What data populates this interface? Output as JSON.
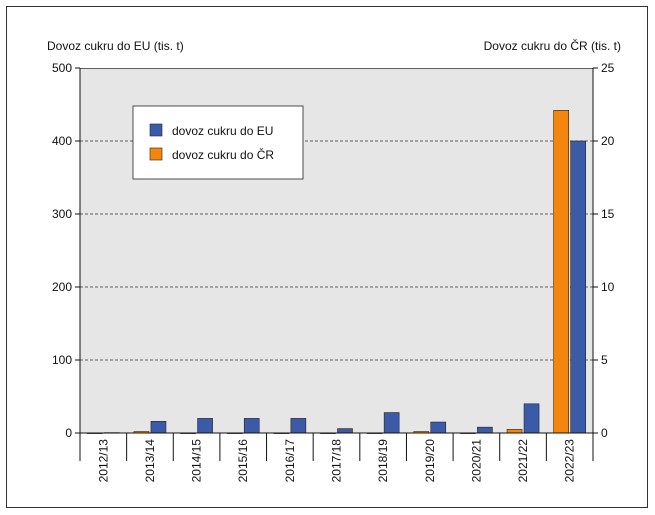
{
  "chart_data": {
    "type": "bar",
    "left_axis_label": "Dovoz cukru do EU (tis. t)",
    "right_axis_label": "Dovoz cukru do ČR (tis. t)",
    "categories": [
      "2012/13",
      "2013/14",
      "2014/15",
      "2015/16",
      "2016/17",
      "2017/18",
      "2018/19",
      "2019/20",
      "2020/21",
      "2021/22",
      "2022/23"
    ],
    "series": [
      {
        "name": "dovoz cukru do ČR",
        "axis": "right",
        "color": "#f5860d",
        "values": [
          0,
          0.1,
          0,
          0,
          0,
          0,
          0,
          0.1,
          0,
          0.25,
          22.1
        ]
      },
      {
        "name": "dovoz cukru do EU",
        "axis": "left",
        "color": "#3b5ba8",
        "values": [
          0.5,
          16,
          20,
          20,
          20,
          6,
          28,
          15,
          8,
          40,
          400
        ]
      }
    ],
    "left_ylim": [
      0,
      500
    ],
    "left_ticks": [
      0,
      100,
      200,
      300,
      400,
      500
    ],
    "right_ylim": [
      0,
      25
    ],
    "right_ticks": [
      0,
      5,
      10,
      15,
      20,
      25
    ],
    "grid": "horizontal dashed",
    "legend_position": "top-left",
    "background": "#e6e6e6"
  }
}
